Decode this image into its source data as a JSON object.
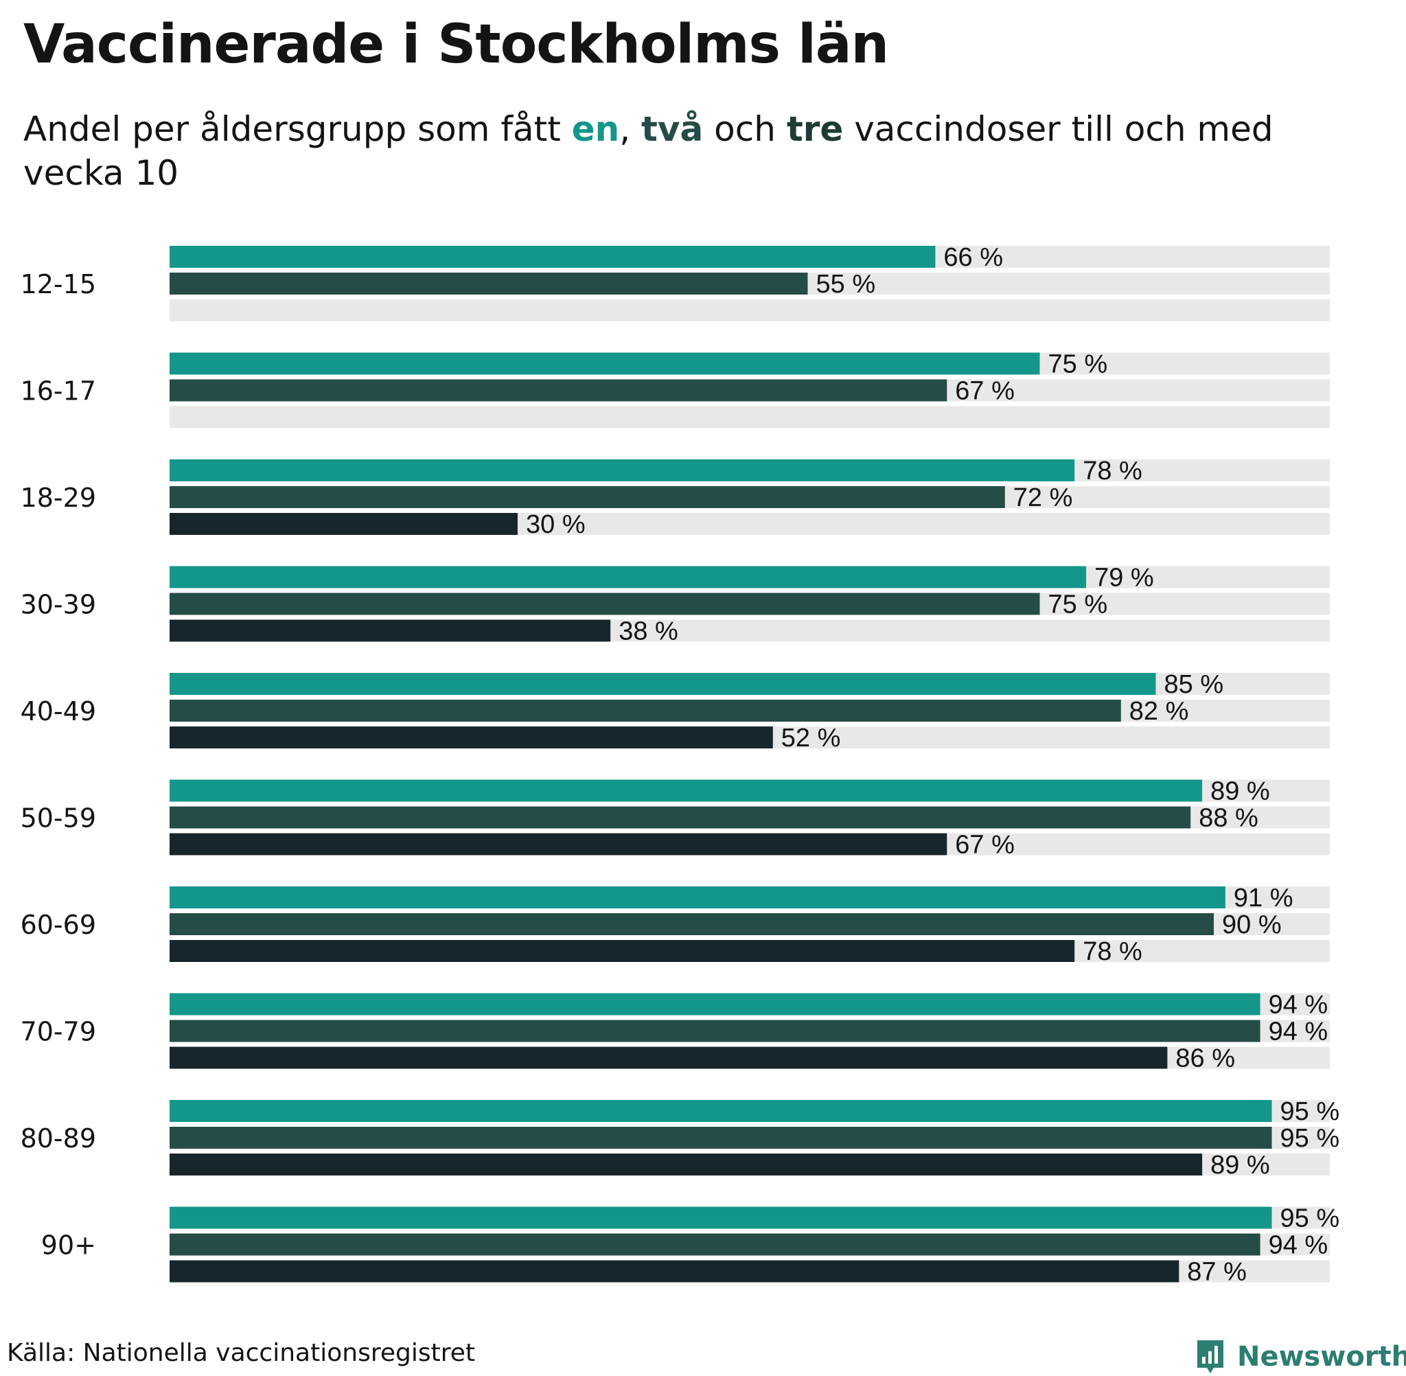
{
  "title": "Vaccinerade i Stockholms län",
  "subtitle": {
    "pre": "Andel per åldersgrupp som fått ",
    "k1": "en",
    "sep1": ", ",
    "k2": "två",
    "sep2": " och ",
    "k3": "tre",
    "post": " vaccindoser till och med vecka 10"
  },
  "source": "Källa: Nationella vaccinationsregistret",
  "brand": {
    "name": "Newsworthy",
    "icon": "bar-chart-logo-icon"
  },
  "colors": {
    "dose1": "#14968a",
    "dose2": "#254c46",
    "dose3": "#17262a",
    "track": "#e8e8e8",
    "brand": "#2d7d72"
  },
  "chart_data": {
    "type": "bar",
    "orientation": "horizontal",
    "title": "Vaccinerade i Stockholms län",
    "xlim": [
      0,
      100
    ],
    "unit_suffix": " %",
    "categories": [
      "12-15",
      "16-17",
      "18-29",
      "30-39",
      "40-49",
      "50-59",
      "60-69",
      "70-79",
      "80-89",
      "90+"
    ],
    "series": [
      {
        "name": "en",
        "values": [
          66,
          75,
          78,
          79,
          85,
          89,
          91,
          94,
          95,
          95
        ]
      },
      {
        "name": "två",
        "values": [
          55,
          67,
          72,
          75,
          82,
          88,
          90,
          94,
          95,
          94
        ]
      },
      {
        "name": "tre",
        "values": [
          null,
          null,
          30,
          38,
          52,
          67,
          78,
          86,
          89,
          87
        ]
      }
    ]
  }
}
